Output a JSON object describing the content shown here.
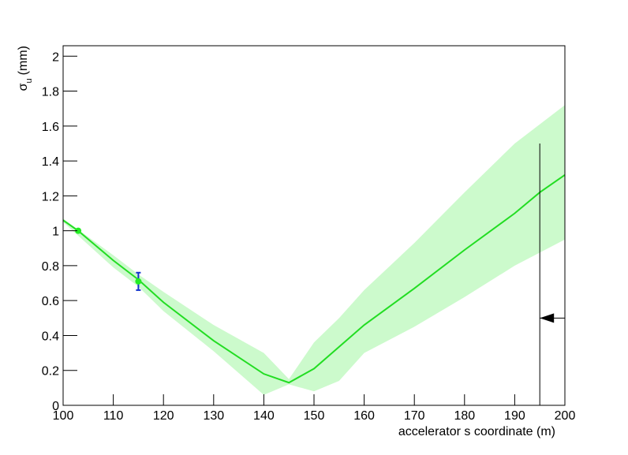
{
  "chart_data": {
    "type": "line",
    "x_label": "accelerator s coordinate (m)",
    "y_label": {
      "symbol": "σ",
      "subscript": "u",
      "unit": "(mm)"
    },
    "xlim": [
      100,
      200
    ],
    "ylim": [
      0,
      2.06
    ],
    "xticks": [
      100,
      110,
      120,
      130,
      140,
      150,
      160,
      170,
      180,
      190,
      200
    ],
    "yticks": [
      0,
      0.2,
      0.4,
      0.6,
      0.8,
      1,
      1.2,
      1.4,
      1.6,
      1.8,
      2
    ],
    "band": {
      "color": "#ccfacc",
      "x": [
        100,
        110,
        115,
        120,
        130,
        140,
        145,
        150,
        155,
        160,
        170,
        180,
        190,
        200
      ],
      "upper": [
        1.07,
        0.86,
        0.75,
        0.65,
        0.46,
        0.3,
        0.15,
        0.36,
        0.5,
        0.66,
        0.93,
        1.22,
        1.5,
        1.72
      ],
      "lower": [
        1.05,
        0.79,
        0.68,
        0.54,
        0.31,
        0.06,
        0.12,
        0.08,
        0.14,
        0.3,
        0.45,
        0.62,
        0.8,
        0.95
      ]
    },
    "line": {
      "color": "#22dd22",
      "x": [
        100,
        103,
        110,
        115,
        120,
        130,
        140,
        145,
        150,
        160,
        170,
        180,
        190,
        195,
        200
      ],
      "values": [
        1.06,
        1.0,
        0.83,
        0.72,
        0.59,
        0.37,
        0.18,
        0.13,
        0.21,
        0.46,
        0.67,
        0.89,
        1.1,
        1.22,
        1.32
      ]
    },
    "points": {
      "color": "#22ee22",
      "error_color": "#1133cc",
      "x": [
        103,
        115
      ],
      "values": [
        1.0,
        0.71
      ],
      "errors": [
        0.005,
        0.05
      ]
    },
    "cut": {
      "x": 195,
      "y_top": 1.5,
      "arrow_y": 0.5,
      "arrow_x_end": 200
    }
  }
}
